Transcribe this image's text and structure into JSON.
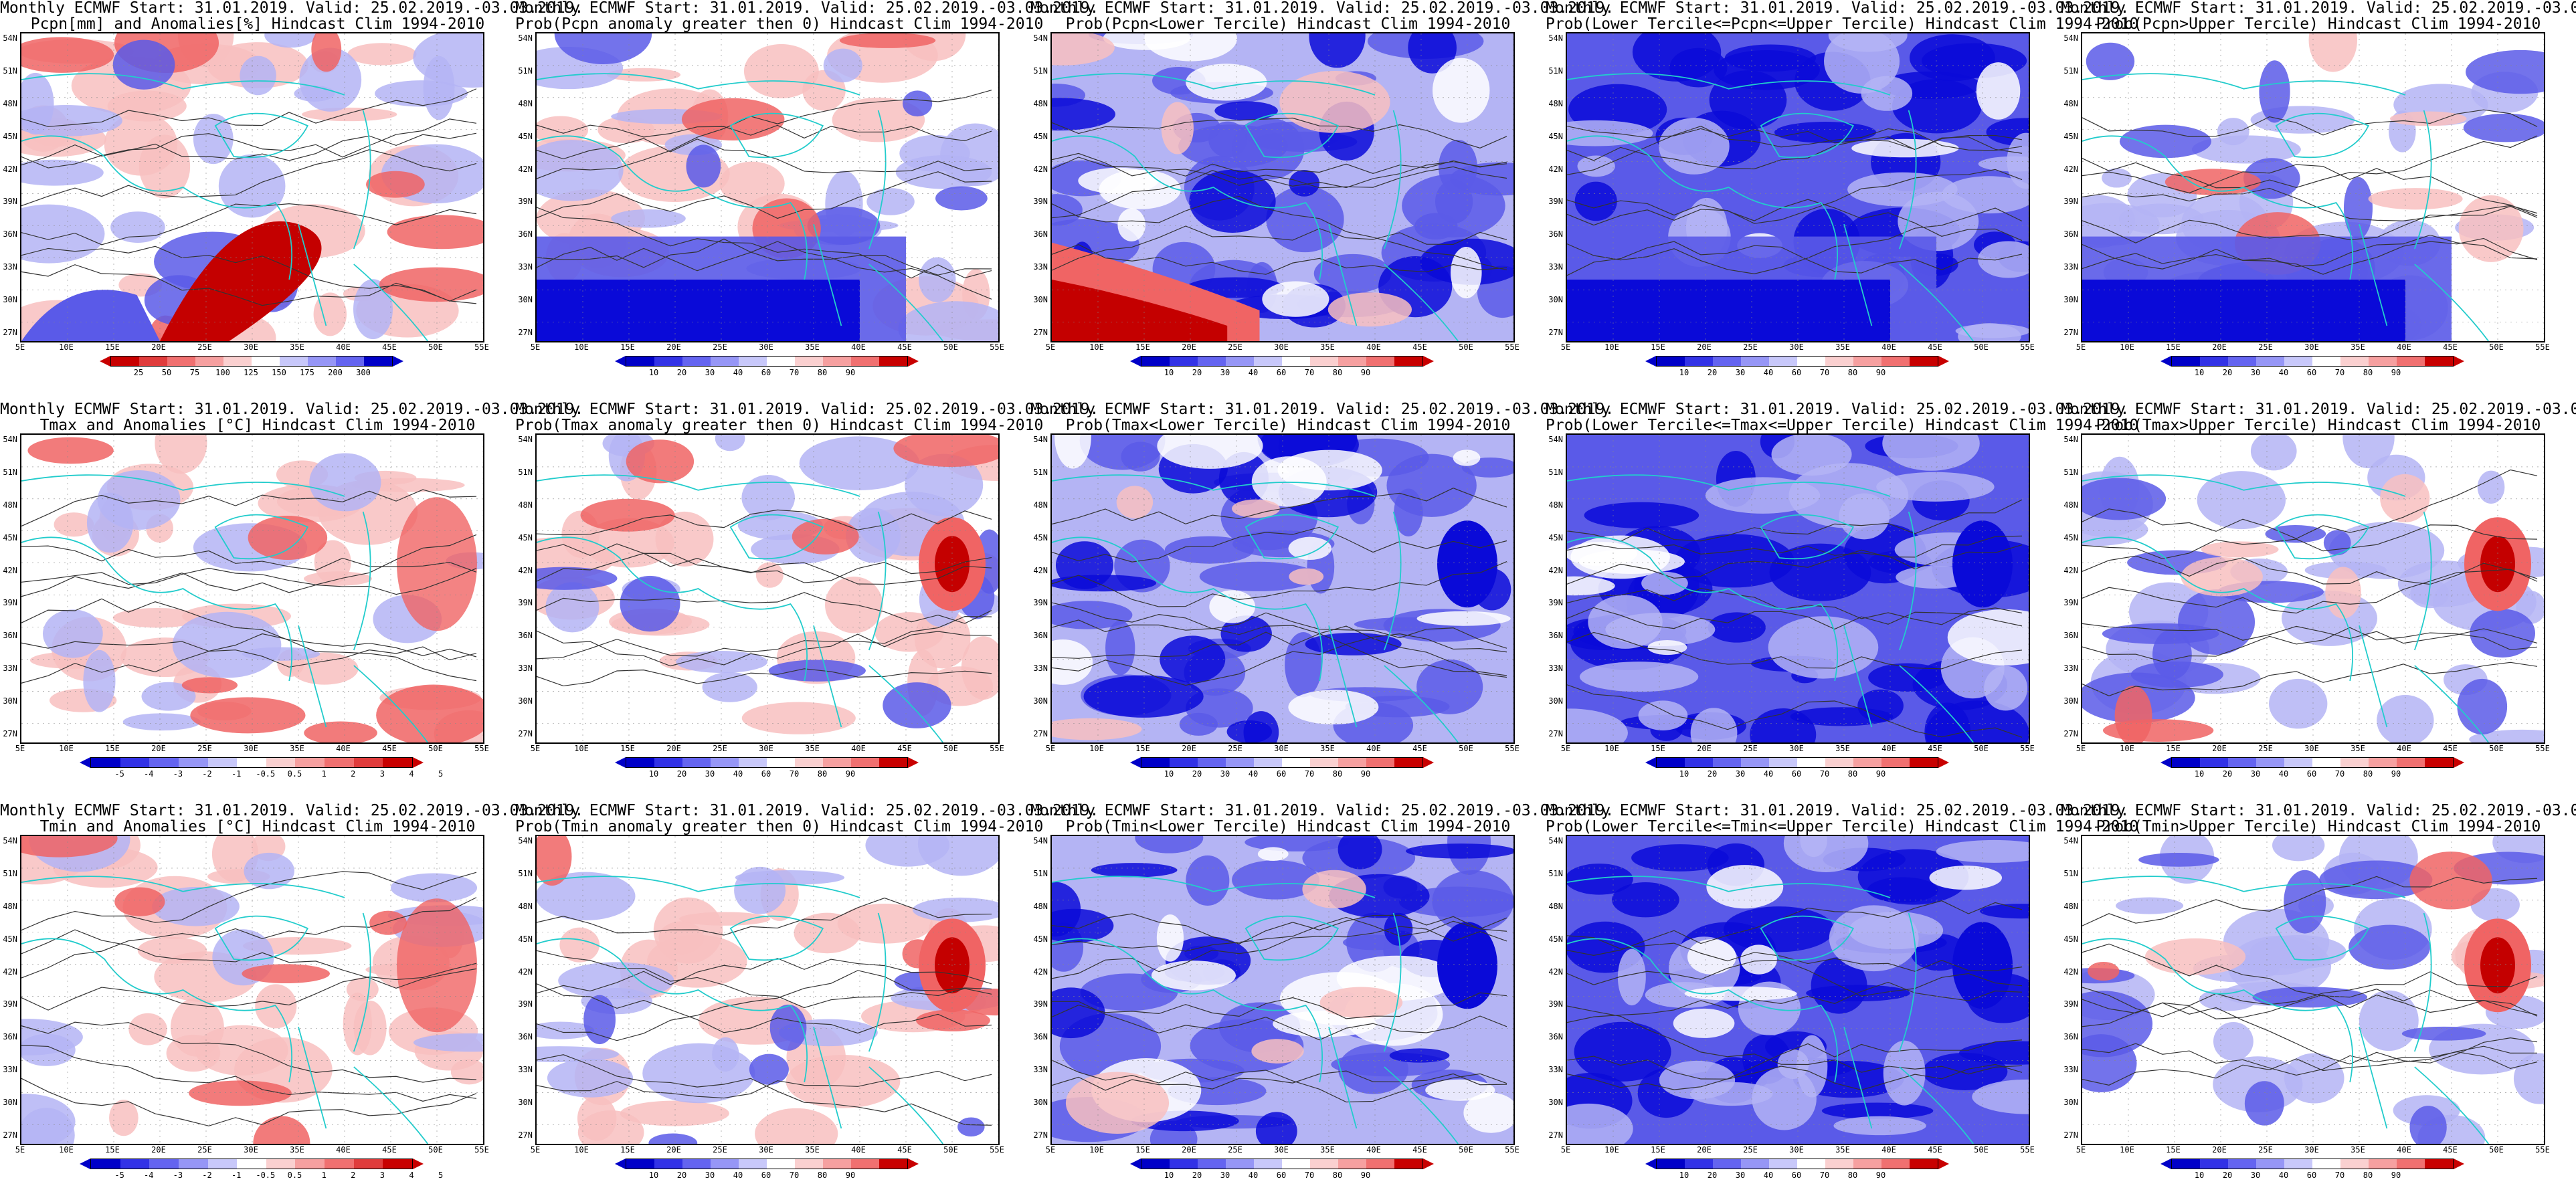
{
  "common": {
    "title_line1": "Monthly ECMWF Start: 31.01.2019. Valid: 25.02.2019.-03.03.2019.",
    "lat_labels": [
      "54N",
      "51N",
      "48N",
      "45N",
      "42N",
      "39N",
      "36N",
      "33N",
      "30N",
      "27N"
    ],
    "lon_labels": [
      "5E",
      "10E",
      "15E",
      "20E",
      "25E",
      "30E",
      "35E",
      "40E",
      "45E",
      "50E",
      "55E"
    ],
    "prob_bins": [
      "10",
      "20",
      "30",
      "40",
      "60",
      "70",
      "80",
      "90"
    ]
  },
  "colors": {
    "blue_dark": "#0a0ad8",
    "blue_mid": "#5a5ae8",
    "blue_light": "#b4b4f4",
    "red_dark": "#c40000",
    "red_mid": "#f06464",
    "red_light": "#f8c0c0",
    "coast": "#22cccc"
  },
  "rows": [
    {
      "id": "pcpn",
      "panels": [
        {
          "line2": "Pcpn[mm] and Anomalies[%] Hindcast Clim 1994-2010",
          "kind": "anomaly_pcpn",
          "cbar": [
            "25",
            "50",
            "75",
            "100",
            "125",
            "150",
            "175",
            "200",
            "300"
          ]
        },
        {
          "line2": "Prob(Pcpn anomaly greater then 0) Hindcast Clim 1994-2010",
          "kind": "prob_above0"
        },
        {
          "line2": "Prob(Pcpn<Lower Tercile) Hindcast Clim 1994-2010",
          "kind": "prob_lower"
        },
        {
          "line2": "Prob(Lower Tercile<=Pcpn<=Upper Tercile) Hindcast Clim 1994-2010",
          "kind": "prob_mid"
        },
        {
          "line2": "Prob(Pcpn>Upper Tercile) Hindcast Clim 1994-2010",
          "kind": "prob_upper"
        }
      ]
    },
    {
      "id": "tmax",
      "panels": [
        {
          "line2": "Tmax and Anomalies [°C] Hindcast Clim 1994-2010",
          "kind": "anomaly_t",
          "cbar": [
            "-5",
            "-4",
            "-3",
            "-2",
            "-1",
            "-0.5",
            "0.5",
            "1",
            "2",
            "3",
            "4",
            "5"
          ]
        },
        {
          "line2": "Prob(Tmax anomaly greater then 0) Hindcast Clim 1994-2010",
          "kind": "prob_above0"
        },
        {
          "line2": "Prob(Tmax<Lower Tercile) Hindcast Clim 1994-2010",
          "kind": "prob_lower"
        },
        {
          "line2": "Prob(Lower Tercile<=Tmax<=Upper Tercile) Hindcast Clim 1994-2010",
          "kind": "prob_mid"
        },
        {
          "line2": "Prob(Tmax>Upper Tercile) Hindcast Clim 1994-2010",
          "kind": "prob_upper"
        }
      ]
    },
    {
      "id": "tmin",
      "panels": [
        {
          "line2": "Tmin and Anomalies [°C] Hindcast Clim 1994-2010",
          "kind": "anomaly_t",
          "cbar": [
            "-5",
            "-4",
            "-3",
            "-2",
            "-1",
            "-0.5",
            "0.5",
            "1",
            "2",
            "3",
            "4",
            "5"
          ]
        },
        {
          "line2": "Prob(Tmin anomaly greater then 0) Hindcast Clim 1994-2010",
          "kind": "prob_above0"
        },
        {
          "line2": "Prob(Tmin<Lower Tercile) Hindcast Clim 1994-2010",
          "kind": "prob_lower"
        },
        {
          "line2": "Prob(Lower Tercile<=Tmin<=Upper Tercile) Hindcast Clim 1994-2010",
          "kind": "prob_mid"
        },
        {
          "line2": "Prob(Tmin>Upper Tercile) Hindcast Clim 1994-2010",
          "kind": "prob_upper"
        }
      ]
    }
  ]
}
